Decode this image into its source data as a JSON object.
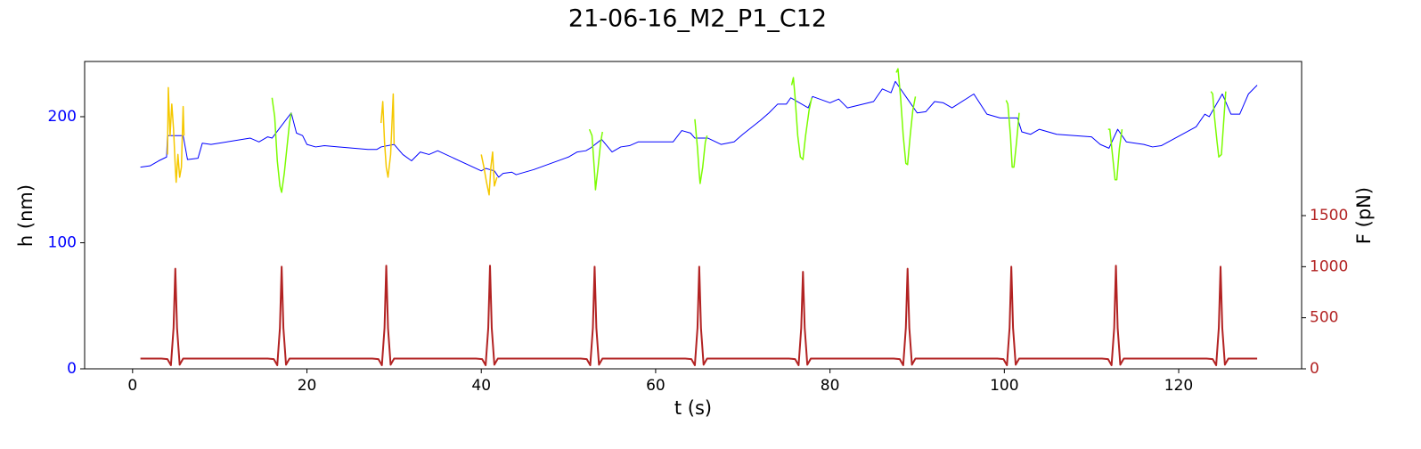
{
  "chart_data": {
    "type": "line",
    "title": "21-06-16_M2_P1_C12",
    "xlabel": "t (s)",
    "ylabel": "h (nm)",
    "y2label": "F (pN)",
    "ylabel_color": "#0000ff",
    "y2label_color": "#b22222",
    "xlim": [
      -5.5,
      134.1
    ],
    "xticks": [
      0,
      20,
      40,
      60,
      80,
      100,
      120
    ],
    "ylim": [
      0,
      243.8
    ],
    "yticks": [
      0,
      100,
      200
    ],
    "y2lim": [
      0,
      3009
    ],
    "y2ticks": [
      0,
      500,
      1000,
      1500
    ],
    "series": [
      {
        "color": "#0000ff",
        "width": 1,
        "x": [
          0.9,
          2,
          3,
          3.9,
          4.0,
          5.8,
          6.3,
          7.5,
          8,
          9,
          13.5,
          14.5,
          15.5,
          16,
          18.2,
          18.8,
          19.5,
          20,
          21,
          22,
          27,
          28,
          28.5,
          30,
          31,
          32,
          33,
          34,
          35,
          40,
          40.5,
          41.5,
          42,
          42.5,
          43.5,
          44,
          46,
          50,
          51,
          52,
          52.5,
          53.8,
          55,
          56,
          57,
          58,
          62,
          63,
          64,
          64.5,
          65.5,
          66,
          67.5,
          69,
          70,
          72,
          73,
          74,
          75,
          75.5,
          77.5,
          78,
          80,
          81,
          82,
          85,
          86,
          87,
          87.5,
          89,
          90,
          91,
          92,
          93,
          94,
          96.5,
          98,
          99.5,
          100,
          101.5,
          102,
          103,
          104,
          106,
          110,
          111,
          112,
          113,
          114,
          116,
          117,
          118,
          122,
          123,
          123.5,
          125,
          126,
          127,
          128,
          129
        ],
        "values": [
          160,
          161,
          165,
          168,
          185,
          185,
          166,
          167,
          179,
          178,
          183,
          180,
          184,
          183,
          203,
          187,
          185,
          178,
          176,
          177,
          174,
          174,
          176,
          178,
          170,
          165,
          172,
          170,
          173,
          157,
          159,
          157,
          152,
          155,
          156,
          154,
          158,
          168,
          172,
          173,
          175,
          182,
          172,
          176,
          177,
          180,
          180,
          189,
          187,
          183,
          183,
          183,
          178,
          180,
          186,
          197,
          203,
          210,
          210,
          215,
          207,
          216,
          211,
          214,
          207,
          212,
          222,
          219,
          228,
          213,
          203,
          204,
          212,
          211,
          207,
          218,
          202,
          199,
          199,
          199,
          188,
          186,
          190,
          186,
          184,
          178,
          175,
          190,
          180,
          178,
          176,
          177,
          192,
          202,
          200,
          218,
          202,
          202,
          218,
          225
        ]
      },
      {
        "color": "#f5c800",
        "width": 1.5,
        "x": [
          4.0,
          4.1,
          4.3,
          4.5,
          4.7,
          4.9,
          5.0,
          5.2,
          5.4,
          5.6,
          5.8,
          5.9,
          null,
          28.5,
          28.7,
          28.9,
          29.1,
          29.3,
          29.6,
          29.9,
          30.0,
          null,
          40.0,
          40.3,
          40.6,
          40.9,
          41.1,
          41.3,
          41.5,
          41.8
        ],
        "values": [
          170,
          223,
          185,
          210,
          190,
          160,
          148,
          170,
          152,
          160,
          208,
          185,
          null,
          195,
          212,
          180,
          160,
          152,
          170,
          218,
          178,
          null,
          170,
          160,
          148,
          138,
          160,
          172,
          145,
          152
        ]
      },
      {
        "color": "#7cfc00",
        "width": 1.5,
        "x": [
          16.0,
          16.3,
          16.6,
          16.9,
          17.1,
          17.4,
          17.7,
          18.0,
          18.2,
          null,
          52.4,
          52.7,
          53.0,
          53.1,
          53.4,
          53.7,
          53.9,
          null,
          64.5,
          64.8,
          65.0,
          65.1,
          65.4,
          65.7,
          65.9,
          null,
          75.6,
          75.8,
          76.0,
          76.3,
          76.6,
          76.9,
          77.2,
          77.6,
          77.9,
          null,
          87.6,
          87.8,
          88.1,
          88.4,
          88.7,
          88.9,
          89.2,
          89.5,
          89.8,
          null,
          100.2,
          100.4,
          100.7,
          100.9,
          101.1,
          101.4,
          101.7,
          null,
          111.9,
          112.1,
          112.4,
          112.7,
          112.9,
          113.2,
          113.5,
          null,
          123.7,
          123.9,
          124.1,
          124.4,
          124.6,
          124.9,
          125.2,
          125.4
        ],
        "values": [
          215,
          200,
          165,
          145,
          140,
          155,
          175,
          195,
          203,
          null,
          190,
          185,
          155,
          142,
          160,
          180,
          188,
          null,
          198,
          175,
          155,
          147,
          160,
          180,
          185,
          null,
          225,
          231,
          215,
          185,
          168,
          166,
          185,
          205,
          215,
          null,
          235,
          238,
          215,
          185,
          163,
          162,
          185,
          205,
          216,
          null,
          213,
          210,
          185,
          160,
          160,
          180,
          203,
          null,
          190,
          190,
          170,
          150,
          150,
          175,
          190,
          null,
          220,
          218,
          200,
          180,
          168,
          170,
          200,
          220
        ]
      },
      {
        "color": "#b22222",
        "width": 2,
        "axis": "y2",
        "x": [
          0.9,
          3.3,
          4.0,
          4.4,
          4.7,
          4.9,
          5.1,
          5.4,
          5.8,
          15.5,
          16.2,
          16.6,
          16.9,
          17.1,
          17.3,
          17.6,
          18.0,
          27.5,
          28.2,
          28.6,
          28.9,
          29.1,
          29.3,
          29.6,
          30.0,
          39.4,
          40.1,
          40.5,
          40.8,
          41.0,
          41.2,
          41.5,
          41.9,
          51.4,
          52.1,
          52.5,
          52.8,
          53.0,
          53.2,
          53.5,
          53.9,
          63.4,
          64.1,
          64.5,
          64.8,
          65.0,
          65.2,
          65.5,
          65.9,
          75.3,
          76.0,
          76.4,
          76.7,
          76.9,
          77.1,
          77.4,
          77.8,
          87.3,
          88.0,
          88.4,
          88.7,
          88.9,
          89.1,
          89.4,
          89.8,
          99.2,
          99.9,
          100.3,
          100.6,
          100.8,
          101.0,
          101.3,
          101.7,
          111.2,
          111.9,
          112.3,
          112.6,
          112.8,
          113.0,
          113.3,
          113.7,
          123.2,
          123.9,
          124.3,
          124.6,
          124.8,
          125.0,
          125.3,
          125.7,
          129
        ],
        "values": [
          100,
          100,
          95,
          35,
          400,
          980,
          400,
          40,
          100,
          100,
          95,
          35,
          400,
          1000,
          400,
          40,
          100,
          100,
          95,
          35,
          400,
          1010,
          400,
          40,
          100,
          100,
          95,
          35,
          400,
          1010,
          400,
          40,
          100,
          100,
          95,
          35,
          400,
          1000,
          400,
          40,
          100,
          100,
          95,
          35,
          400,
          1000,
          400,
          40,
          100,
          100,
          95,
          35,
          400,
          950,
          400,
          40,
          100,
          100,
          95,
          35,
          400,
          980,
          400,
          40,
          100,
          100,
          95,
          35,
          400,
          1000,
          400,
          40,
          100,
          100,
          95,
          35,
          400,
          1010,
          400,
          40,
          100,
          100,
          95,
          35,
          400,
          1000,
          400,
          40,
          100,
          100
        ]
      }
    ]
  }
}
